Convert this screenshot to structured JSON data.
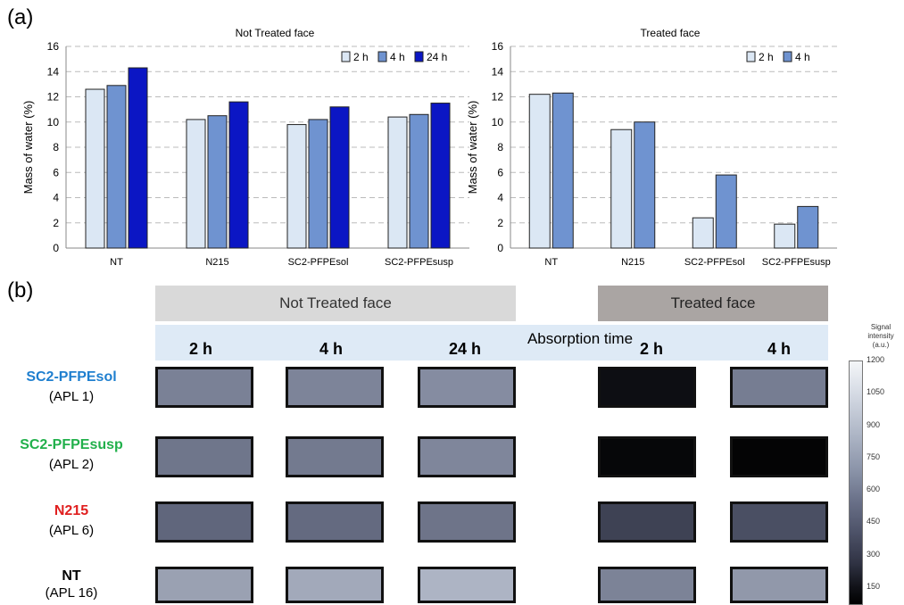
{
  "panel_a_label": "(a)",
  "panel_b_label": "(b)",
  "chart_data": [
    {
      "type": "bar",
      "title": "Not Treated face",
      "xlabel": "",
      "ylabel": "Mass of water (%)",
      "ylim": [
        0,
        16
      ],
      "yticks": [
        0,
        2,
        4,
        6,
        8,
        10,
        12,
        14,
        16
      ],
      "grid": true,
      "legend_position": "top-right",
      "categories": [
        "NT",
        "N215",
        "SC2-PFPEsol",
        "SC2-PFPEsusp"
      ],
      "series": [
        {
          "name": "2 h",
          "color": "#dbe7f4",
          "values": [
            12.6,
            10.2,
            9.8,
            10.4
          ]
        },
        {
          "name": "4 h",
          "color": "#6f93d0",
          "values": [
            12.9,
            10.5,
            10.2,
            10.6
          ]
        },
        {
          "name": "24 h",
          "color": "#0b16c4",
          "values": [
            14.3,
            11.6,
            11.2,
            11.5
          ]
        }
      ]
    },
    {
      "type": "bar",
      "title": "Treated face",
      "xlabel": "",
      "ylabel": "Mass of water (%)",
      "ylim": [
        0,
        16
      ],
      "yticks": [
        0,
        2,
        4,
        6,
        8,
        10,
        12,
        14,
        16
      ],
      "grid": true,
      "legend_position": "top-right",
      "categories": [
        "NT",
        "N215",
        "SC2-PFPEsol",
        "SC2-PFPEsusp"
      ],
      "series": [
        {
          "name": "2 h",
          "color": "#dbe7f4",
          "values": [
            12.2,
            9.4,
            2.4,
            1.9
          ]
        },
        {
          "name": "4 h",
          "color": "#6f93d0",
          "values": [
            12.3,
            10.0,
            5.8,
            3.3
          ]
        }
      ]
    }
  ],
  "imaging": {
    "not_treated_header": "Not Treated face",
    "treated_header": "Treated face",
    "absorption_title": "Absorption time",
    "times": [
      "2 h",
      "4 h",
      "24 h",
      "2 h",
      "4 h"
    ],
    "rows": [
      {
        "name": "SC2-PFPEsol",
        "apl": "(APL 1)",
        "name_color": "#1f7fcf",
        "tiles": [
          "#7a8196",
          "#7d8499",
          "#858ca1",
          "#0d0e13",
          "#767d92"
        ]
      },
      {
        "name": "SC2-PFPEsusp",
        "apl": "(APL 2)",
        "name_color": "#21b04b",
        "tiles": [
          "#6f768b",
          "#737a8f",
          "#7f869b",
          "#060709",
          "#040405"
        ]
      },
      {
        "name": "N215",
        "apl": "(APL 6)",
        "name_color": "#e01f1f",
        "tiles": [
          "#60667c",
          "#646a80",
          "#6e7489",
          "#3e4254",
          "#4a4f63"
        ]
      },
      {
        "name": "NT",
        "apl": "(APL 16)",
        "name_color": "#000000",
        "tiles": [
          "#9aa1b2",
          "#a2a9ba",
          "#adb4c4",
          "#7c8397",
          "#9198aa"
        ]
      }
    ],
    "colorbar": {
      "title": [
        "Signal",
        "intensity",
        "(a.u.)"
      ],
      "ticks": [
        1200,
        1050,
        900,
        750,
        600,
        450,
        300,
        150
      ]
    }
  }
}
